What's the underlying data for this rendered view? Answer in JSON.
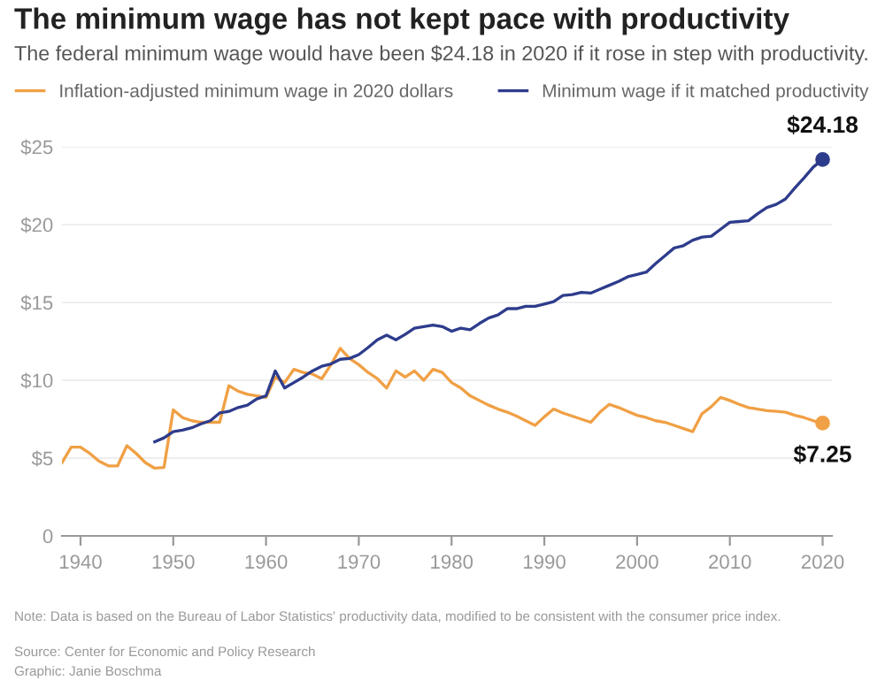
{
  "chart_data": {
    "type": "line",
    "title": "The minimum wage has not kept pace with productivity",
    "subtitle": "The federal minimum wage would have been $24.18 in 2020 if it rose in step with productivity.",
    "series": [
      {
        "name": "Inflation-adjusted minimum wage in 2020 dollars",
        "color": "#f0a045",
        "x": [
          1938,
          1939,
          1940,
          1941,
          1942,
          1943,
          1944,
          1945,
          1946,
          1947,
          1948,
          1949,
          1950,
          1951,
          1952,
          1953,
          1954,
          1955,
          1956,
          1957,
          1958,
          1959,
          1960,
          1961,
          1962,
          1963,
          1964,
          1965,
          1966,
          1967,
          1968,
          1969,
          1970,
          1971,
          1972,
          1973,
          1974,
          1975,
          1976,
          1977,
          1978,
          1979,
          1980,
          1981,
          1982,
          1983,
          1984,
          1985,
          1986,
          1987,
          1988,
          1989,
          1990,
          1991,
          1992,
          1993,
          1994,
          1995,
          1996,
          1997,
          1998,
          1999,
          2000,
          2001,
          2002,
          2003,
          2004,
          2005,
          2006,
          2007,
          2008,
          2009,
          2010,
          2011,
          2012,
          2013,
          2014,
          2015,
          2016,
          2017,
          2018,
          2019,
          2020
        ],
        "values": [
          4.7,
          5.7,
          5.7,
          5.3,
          4.8,
          4.5,
          4.5,
          5.8,
          5.3,
          4.7,
          4.35,
          4.4,
          8.1,
          7.6,
          7.4,
          7.3,
          7.3,
          7.3,
          9.65,
          9.3,
          9.1,
          9.0,
          8.9,
          10.2,
          9.85,
          10.7,
          10.5,
          10.4,
          10.1,
          11.0,
          12.05,
          11.4,
          11.0,
          10.5,
          10.1,
          9.5,
          10.6,
          10.2,
          10.6,
          10.0,
          10.7,
          10.5,
          9.85,
          9.5,
          9.0,
          8.7,
          8.4,
          8.15,
          7.95,
          7.7,
          7.4,
          7.1,
          7.65,
          8.15,
          7.9,
          7.7,
          7.5,
          7.3,
          7.95,
          8.45,
          8.25,
          8.0,
          7.75,
          7.6,
          7.4,
          7.3,
          7.1,
          6.9,
          6.7,
          7.85,
          8.3,
          8.9,
          8.7,
          8.45,
          8.25,
          8.15,
          8.05,
          8.0,
          7.95,
          7.75,
          7.6,
          7.4,
          7.25
        ]
      },
      {
        "name": "Minimum wage if it matched productivity",
        "color": "#2e3c8c",
        "x": [
          1948,
          1949,
          1950,
          1951,
          1952,
          1953,
          1954,
          1955,
          1956,
          1957,
          1958,
          1959,
          1960,
          1961,
          1962,
          1963,
          1964,
          1965,
          1966,
          1967,
          1968,
          1969,
          1970,
          1971,
          1972,
          1973,
          1974,
          1975,
          1976,
          1977,
          1978,
          1979,
          1980,
          1981,
          1982,
          1983,
          1984,
          1985,
          1986,
          1987,
          1988,
          1989,
          1990,
          1991,
          1992,
          1993,
          1994,
          1995,
          1996,
          1997,
          1998,
          1999,
          2000,
          2001,
          2002,
          2003,
          2004,
          2005,
          2006,
          2007,
          2008,
          2009,
          2010,
          2011,
          2012,
          2013,
          2014,
          2015,
          2016,
          2017,
          2018,
          2019,
          2020
        ],
        "values": [
          6.05,
          6.3,
          6.7,
          6.8,
          6.95,
          7.2,
          7.4,
          7.9,
          8.0,
          8.25,
          8.4,
          8.8,
          9.0,
          10.6,
          9.5,
          9.85,
          10.2,
          10.6,
          10.9,
          11.05,
          11.35,
          11.4,
          11.65,
          12.1,
          12.6,
          12.9,
          12.6,
          12.95,
          13.35,
          13.45,
          13.55,
          13.45,
          13.15,
          13.35,
          13.25,
          13.65,
          14.0,
          14.2,
          14.6,
          14.6,
          14.75,
          14.75,
          14.9,
          15.05,
          15.45,
          15.5,
          15.65,
          15.6,
          15.85,
          16.1,
          16.35,
          16.65,
          16.8,
          16.95,
          17.5,
          18.0,
          18.5,
          18.65,
          19.0,
          19.2,
          19.25,
          19.7,
          20.15,
          20.2,
          20.25,
          20.7,
          21.1,
          21.3,
          21.65,
          22.35,
          23.0,
          23.7,
          24.18
        ]
      }
    ],
    "xlim": [
      1938,
      2021
    ],
    "xticks": [
      1940,
      1950,
      1960,
      1970,
      1980,
      1990,
      2000,
      2010,
      2020
    ],
    "ylim": [
      0,
      25
    ],
    "yticks": [
      0,
      {
        "value": 5,
        "label": "$5"
      },
      {
        "value": 10,
        "label": "$10"
      },
      {
        "value": 15,
        "label": "$15"
      },
      {
        "value": 20,
        "label": "$20"
      },
      {
        "value": 25,
        "label": "$25"
      }
    ],
    "grid": "y",
    "legend": "top",
    "line_style": "solid",
    "annotations": [
      {
        "text": "$24.18",
        "x": 2020,
        "y": 24.18
      },
      {
        "text": "$7.25",
        "x": 2020,
        "y": 7.25
      },
      "Note: Data is based on the Bureau of Labor Statistics' productivity data, modified to be consistent with the consumer price index.",
      "Source: Center for Economic and Policy Research",
      "Graphic: Janie Boschma"
    ]
  }
}
